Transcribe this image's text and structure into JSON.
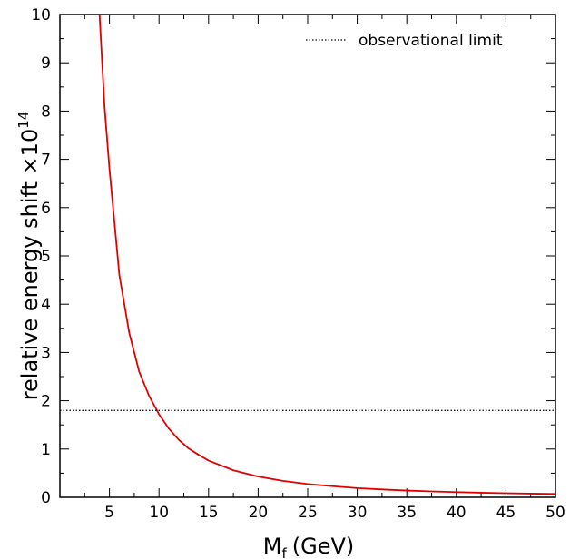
{
  "chart_data": {
    "type": "line",
    "xlabel_main": "M",
    "xlabel_sub": "f",
    "xlabel_unit": "(GeV)",
    "ylabel_main": "relative energy shift ×10",
    "ylabel_exp": "14",
    "xlim": [
      0,
      50
    ],
    "ylim": [
      0,
      10
    ],
    "x_ticks": [
      5,
      10,
      15,
      20,
      25,
      30,
      35,
      40,
      45,
      50
    ],
    "y_ticks": [
      0,
      1,
      2,
      3,
      4,
      5,
      6,
      7,
      8,
      9,
      10
    ],
    "grid": false,
    "legend_position": "top-right",
    "series": [
      {
        "name": "",
        "color": "#e00000",
        "style": "solid",
        "x": [
          4.0,
          4.5,
          5.0,
          5.5,
          6.0,
          7.0,
          8.0,
          9.0,
          10.0,
          11.0,
          12.0,
          13.0,
          14.0,
          15.0,
          17.5,
          20.0,
          22.5,
          25.0,
          27.5,
          30.0,
          32.5,
          35.0,
          37.5,
          40.0,
          42.5,
          45.0,
          47.5,
          50.0
        ],
        "y": [
          10.0,
          8.1,
          6.8,
          5.7,
          4.6,
          3.4,
          2.6,
          2.1,
          1.72,
          1.42,
          1.19,
          1.01,
          0.88,
          0.76,
          0.56,
          0.43,
          0.34,
          0.275,
          0.23,
          0.19,
          0.163,
          0.14,
          0.122,
          0.108,
          0.095,
          0.085,
          0.076,
          0.069
        ]
      },
      {
        "name": "observational limit",
        "color": "#000000",
        "style": "dotted",
        "x": [
          0,
          50
        ],
        "y": [
          1.8,
          1.8
        ]
      }
    ]
  }
}
